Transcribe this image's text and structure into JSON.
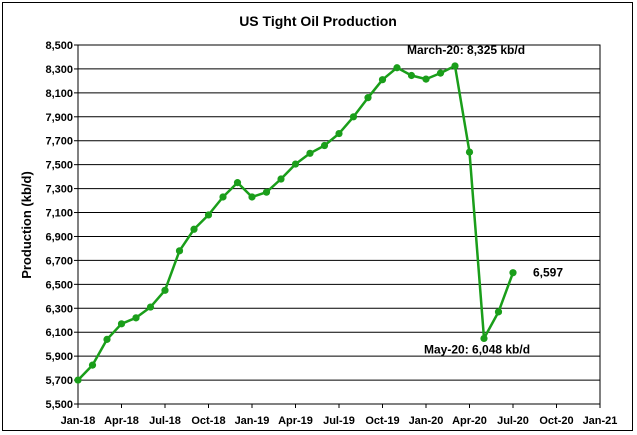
{
  "chart_data": {
    "type": "line",
    "title": "US Tight Oil Production",
    "xlabel": "",
    "ylabel": "Production (kb/d)",
    "ylim": [
      5500,
      8500
    ],
    "y_tick_step": 200,
    "grid": true,
    "x_range": [
      "2018-01",
      "2021-01"
    ],
    "x_tick_labels": [
      "Jan-18",
      "Apr-18",
      "Jul-18",
      "Oct-18",
      "Jan-19",
      "Apr-19",
      "Jul-19",
      "Oct-19",
      "Jan-20",
      "Apr-20",
      "Jul-20",
      "Oct-20",
      "Jan-21"
    ],
    "x_tick_dates": [
      "2018-01",
      "2018-04",
      "2018-07",
      "2018-10",
      "2019-01",
      "2019-04",
      "2019-07",
      "2019-10",
      "2020-01",
      "2020-04",
      "2020-07",
      "2020-10",
      "2021-01"
    ],
    "y_tick_labels": [
      "5,500",
      "5,700",
      "5,900",
      "6,100",
      "6,300",
      "6,500",
      "6,700",
      "6,900",
      "7,100",
      "7,300",
      "7,500",
      "7,700",
      "7,900",
      "8,100",
      "8,300",
      "8,500"
    ],
    "series": [
      {
        "color": "#1a9e1a",
        "x": [
          "2018-01",
          "2018-02",
          "2018-03",
          "2018-04",
          "2018-05",
          "2018-06",
          "2018-07",
          "2018-08",
          "2018-09",
          "2018-10",
          "2018-11",
          "2018-12",
          "2019-01",
          "2019-02",
          "2019-03",
          "2019-04",
          "2019-05",
          "2019-06",
          "2019-07",
          "2019-08",
          "2019-09",
          "2019-10",
          "2019-11",
          "2019-12",
          "2020-01",
          "2020-02",
          "2020-03",
          "2020-04",
          "2020-05",
          "2020-06",
          "2020-07"
        ],
        "values": [
          5700,
          5825,
          6040,
          6170,
          6220,
          6310,
          6450,
          6780,
          6960,
          7080,
          7230,
          7350,
          7230,
          7270,
          7380,
          7505,
          7595,
          7660,
          7760,
          7900,
          8060,
          8210,
          8310,
          8245,
          8215,
          8265,
          8325,
          7605,
          6048,
          6270,
          6597
        ]
      }
    ],
    "annotations": [
      {
        "text": "March-20: 8,325 kb/d",
        "x": "2020-03",
        "y": 8325
      },
      {
        "text": "May-20: 6,048 kb/d",
        "x": "2020-05",
        "y": 6048
      },
      {
        "text": "6,597",
        "x": "2020-07",
        "y": 6597
      }
    ]
  }
}
